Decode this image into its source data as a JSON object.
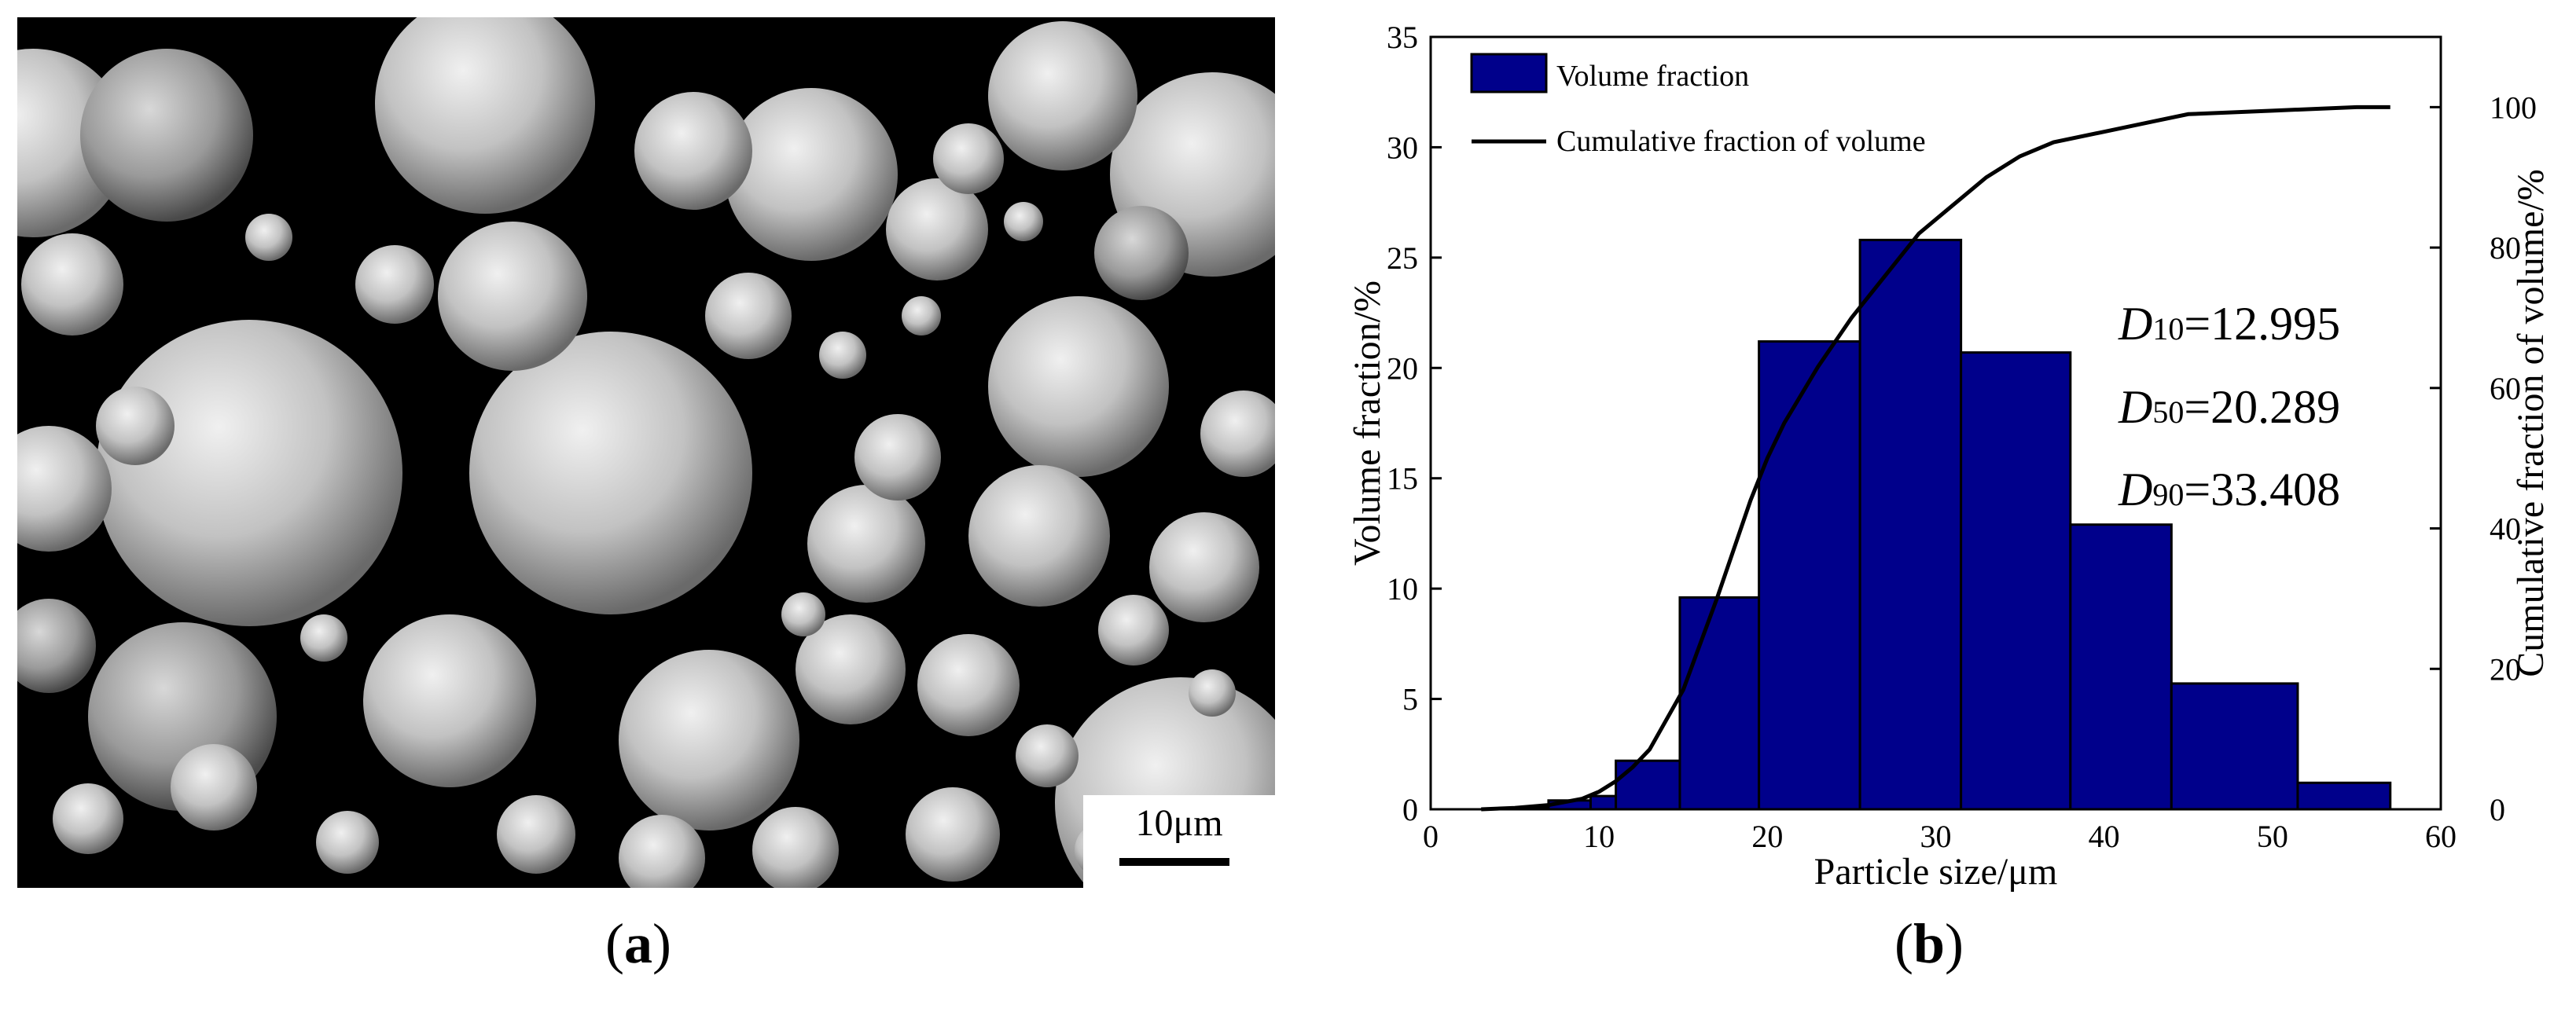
{
  "panel_a": {
    "scale_bar_label": "10μm",
    "caption_letter": "a"
  },
  "panel_b": {
    "caption_letter": "b"
  },
  "chart_data": {
    "type": "bar",
    "xlabel": "Particle size/μm",
    "ylabel": "Volume fraction/%",
    "y2label": "Cumulative fraction of volume/%",
    "xlim": [
      0,
      60
    ],
    "ylim": [
      0,
      35
    ],
    "y2lim": [
      0,
      110
    ],
    "xticks": [
      0,
      10,
      20,
      30,
      40,
      50,
      60
    ],
    "yticks": [
      0,
      5,
      10,
      15,
      20,
      25,
      30,
      35
    ],
    "y2ticks": [
      0,
      20,
      40,
      60,
      80,
      100
    ],
    "legend_position": "top-left",
    "bars": [
      {
        "from": 5.5,
        "to": 7.0,
        "value": 0.1
      },
      {
        "from": 7.0,
        "to": 9.5,
        "value": 0.4
      },
      {
        "from": 9.5,
        "to": 11.0,
        "value": 0.6
      },
      {
        "from": 11.0,
        "to": 14.8,
        "value": 2.2
      },
      {
        "from": 14.8,
        "to": 19.5,
        "value": 9.6
      },
      {
        "from": 19.5,
        "to": 25.5,
        "value": 21.2
      },
      {
        "from": 25.5,
        "to": 31.5,
        "value": 25.8
      },
      {
        "from": 31.5,
        "to": 38.0,
        "value": 20.7
      },
      {
        "from": 38.0,
        "to": 44.0,
        "value": 12.9
      },
      {
        "from": 44.0,
        "to": 51.5,
        "value": 5.7
      },
      {
        "from": 51.5,
        "to": 57.0,
        "value": 1.2
      }
    ],
    "series": [
      {
        "name": "Volume fraction",
        "type": "bar",
        "color": "#00008b"
      },
      {
        "name": "Cumulative fraction of volume",
        "type": "line",
        "color": "#000000",
        "x": [
          3,
          5,
          7,
          9,
          10,
          11,
          12,
          13,
          15,
          17,
          19,
          20,
          21,
          23,
          25,
          27,
          29,
          31,
          33,
          35,
          37,
          40,
          43,
          45,
          50,
          55,
          57
        ],
        "y": [
          0,
          0.2,
          0.6,
          1.5,
          2.5,
          4,
          6,
          8.5,
          17,
          30,
          44,
          50,
          55,
          63,
          70,
          76,
          82,
          86,
          90,
          93,
          95,
          96.5,
          98,
          99,
          99.5,
          100,
          100
        ]
      }
    ],
    "annotations": [
      {
        "symbol": "D",
        "subscript": "10",
        "value": "=12.995"
      },
      {
        "symbol": "D",
        "subscript": "50",
        "value": "=20.289"
      },
      {
        "symbol": "D",
        "subscript": "90",
        "value": "=33.408"
      }
    ]
  }
}
